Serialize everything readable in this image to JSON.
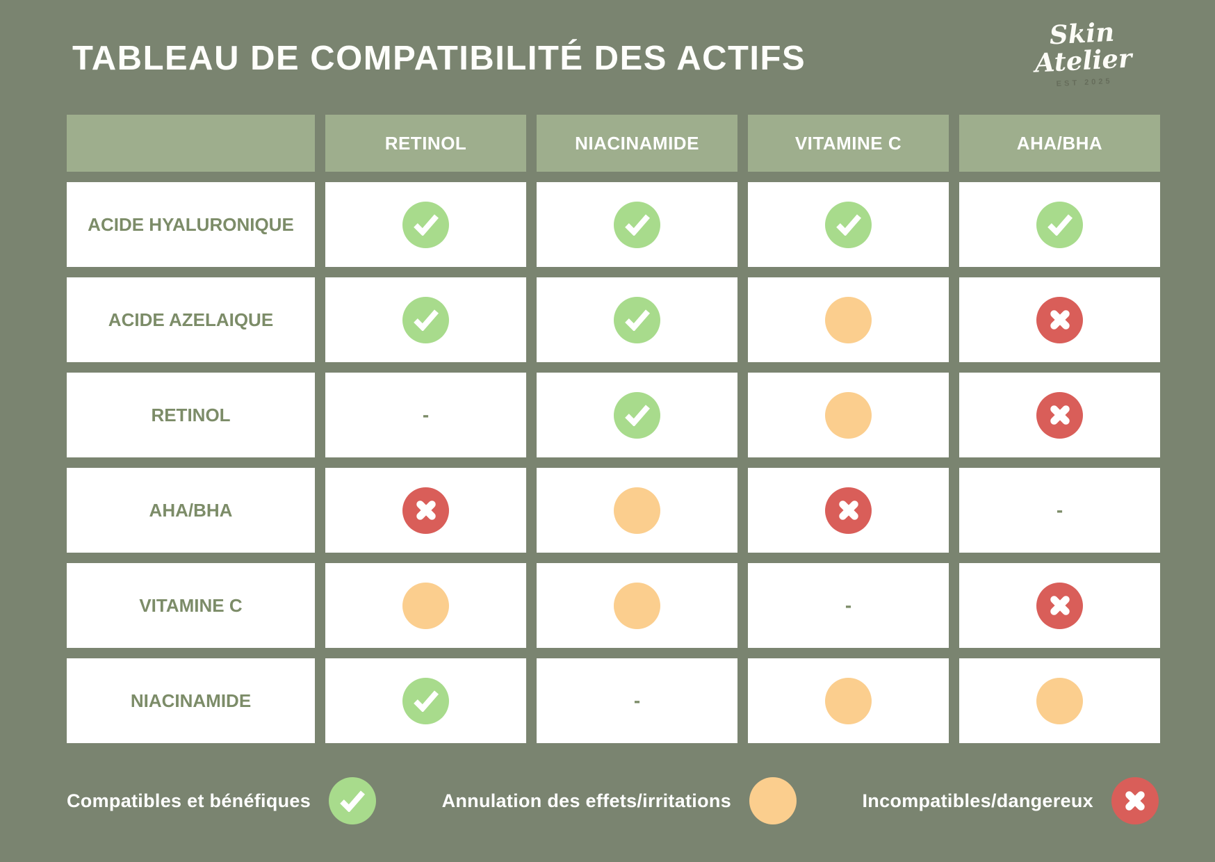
{
  "page": {
    "title": "TABLEAU DE COMPATIBILITÉ DES ACTIFS",
    "brand": {
      "line1": "Skin",
      "line2": "Atelier",
      "est": "EST 2025"
    }
  },
  "colors": {
    "background": "#7A8470",
    "header_cell": "#9EAE8D",
    "cell_background": "#FFFFFF",
    "label_text": "#7C8C68",
    "compatible_green": "#A8DB8C",
    "caution_orange": "#FBCE8E",
    "incompatible_red": "#D95E59",
    "title_text": "#FFFFFF"
  },
  "table": {
    "dash_char": "-",
    "columns": [
      "RETINOL",
      "NIACINAMIDE",
      "VITAMINE C",
      "AHA/BHA"
    ],
    "rows": [
      {
        "label": "ACIDE HYALURONIQUE",
        "cells": [
          "check",
          "check",
          "check",
          "check"
        ]
      },
      {
        "label": "ACIDE AZELAIQUE",
        "cells": [
          "check",
          "check",
          "warning",
          "cross"
        ]
      },
      {
        "label": "RETINOL",
        "cells": [
          "dash",
          "check",
          "warning",
          "cross"
        ]
      },
      {
        "label": "AHA/BHA",
        "cells": [
          "cross",
          "warning",
          "cross",
          "dash"
        ]
      },
      {
        "label": "VITAMINE C",
        "cells": [
          "warning",
          "warning",
          "dash",
          "cross"
        ]
      },
      {
        "label": "NIACINAMIDE",
        "cells": [
          "check",
          "dash",
          "warning",
          "warning"
        ]
      }
    ]
  },
  "legend": [
    {
      "key": "compatible",
      "label": "Compatibles et bénéfiques",
      "icon": "check"
    },
    {
      "key": "caution",
      "label": "Annulation des effets/irritations",
      "icon": "warning"
    },
    {
      "key": "incompatible",
      "label": "Incompatibles/dangereux",
      "icon": "cross"
    }
  ],
  "chart_data": {
    "type": "table",
    "title": "TABLEAU DE COMPATIBILITÉ DES ACTIFS",
    "columns": [
      "RETINOL",
      "NIACINAMIDE",
      "VITAMINE C",
      "AHA/BHA"
    ],
    "rows": [
      "ACIDE HYALURONIQUE",
      "ACIDE AZELAIQUE",
      "RETINOL",
      "AHA/BHA",
      "VITAMINE C",
      "NIACINAMIDE"
    ],
    "values": [
      [
        "compatible",
        "compatible",
        "compatible",
        "compatible"
      ],
      [
        "compatible",
        "compatible",
        "caution",
        "incompatible"
      ],
      [
        "self",
        "compatible",
        "caution",
        "incompatible"
      ],
      [
        "incompatible",
        "caution",
        "incompatible",
        "self"
      ],
      [
        "caution",
        "caution",
        "self",
        "incompatible"
      ],
      [
        "compatible",
        "self",
        "caution",
        "caution"
      ]
    ],
    "value_encoding": {
      "compatible": "green check circle",
      "caution": "orange circle",
      "incompatible": "red cross circle",
      "self": "dash (same active)"
    },
    "legend_position": "bottom",
    "legend": [
      {
        "symbol": "green-check",
        "meaning": "Compatibles et bénéfiques"
      },
      {
        "symbol": "orange-dot",
        "meaning": "Annulation des effets/irritations"
      },
      {
        "symbol": "red-cross",
        "meaning": "Incompatibles/dangereux"
      }
    ]
  }
}
